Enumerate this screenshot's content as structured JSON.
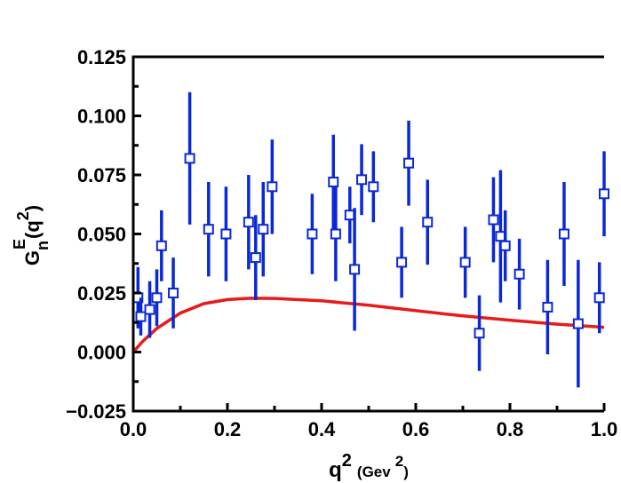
{
  "chart_data": {
    "type": "scatter",
    "xlim": [
      0.0,
      1.0
    ],
    "ylim": [
      -0.025,
      0.125
    ],
    "x_ticks": [
      0.0,
      0.2,
      0.4,
      0.6,
      0.8,
      1.0
    ],
    "x_tick_labels": [
      "0.0",
      "0.2",
      "0.4",
      "0.6",
      "0.8",
      "1.0"
    ],
    "y_ticks": [
      -0.025,
      0.0,
      0.025,
      0.05,
      0.075,
      0.1,
      0.125
    ],
    "y_tick_labels": [
      "−0.025",
      "0.000",
      "0.025",
      "0.050",
      "0.075",
      "0.100",
      "0.125"
    ],
    "xlabel": {
      "base": "q",
      "sup": "2",
      "unit_open": "(Gev",
      "unit_sup": "2",
      "unit_close": ")"
    },
    "ylabel": {
      "base": "G",
      "sub": "n",
      "sup": "E",
      "arg_open": "(q",
      "arg_sup": "2",
      "arg_close": ")"
    },
    "grid": false,
    "colors": {
      "points": "#0a28d8",
      "curve": "#e81a1a",
      "axes": "#000000"
    },
    "series": [
      {
        "kind": "points-with-errorbars",
        "points": [
          {
            "x": 0.01,
            "y": 0.023,
            "err": 0.013
          },
          {
            "x": 0.016,
            "y": 0.015,
            "err": 0.008
          },
          {
            "x": 0.035,
            "y": 0.018,
            "err": 0.012
          },
          {
            "x": 0.05,
            "y": 0.023,
            "err": 0.012
          },
          {
            "x": 0.06,
            "y": 0.045,
            "err": 0.015
          },
          {
            "x": 0.085,
            "y": 0.025,
            "err": 0.015
          },
          {
            "x": 0.12,
            "y": 0.082,
            "err": 0.028
          },
          {
            "x": 0.16,
            "y": 0.052,
            "err": 0.02
          },
          {
            "x": 0.197,
            "y": 0.05,
            "err": 0.02
          },
          {
            "x": 0.245,
            "y": 0.055,
            "err": 0.02
          },
          {
            "x": 0.26,
            "y": 0.04,
            "err": 0.018
          },
          {
            "x": 0.276,
            "y": 0.052,
            "err": 0.02
          },
          {
            "x": 0.295,
            "y": 0.07,
            "err": 0.02
          },
          {
            "x": 0.38,
            "y": 0.05,
            "err": 0.017
          },
          {
            "x": 0.425,
            "y": 0.072,
            "err": 0.02
          },
          {
            "x": 0.43,
            "y": 0.05,
            "err": 0.02
          },
          {
            "x": 0.46,
            "y": 0.058,
            "err": 0.012
          },
          {
            "x": 0.47,
            "y": 0.035,
            "err": 0.026
          },
          {
            "x": 0.485,
            "y": 0.073,
            "err": 0.015
          },
          {
            "x": 0.51,
            "y": 0.07,
            "err": 0.015
          },
          {
            "x": 0.57,
            "y": 0.038,
            "err": 0.015
          },
          {
            "x": 0.585,
            "y": 0.08,
            "err": 0.018
          },
          {
            "x": 0.625,
            "y": 0.055,
            "err": 0.018
          },
          {
            "x": 0.705,
            "y": 0.038,
            "err": 0.015
          },
          {
            "x": 0.735,
            "y": 0.008,
            "err": 0.016
          },
          {
            "x": 0.765,
            "y": 0.056,
            "err": 0.018
          },
          {
            "x": 0.78,
            "y": 0.049,
            "err": 0.028
          },
          {
            "x": 0.79,
            "y": 0.045,
            "err": 0.015
          },
          {
            "x": 0.82,
            "y": 0.033,
            "err": 0.015
          },
          {
            "x": 0.88,
            "y": 0.019,
            "err": 0.02
          },
          {
            "x": 0.915,
            "y": 0.05,
            "err": 0.022
          },
          {
            "x": 0.945,
            "y": 0.012,
            "err": 0.027
          },
          {
            "x": 0.99,
            "y": 0.023,
            "err": 0.015
          },
          {
            "x": 1.0,
            "y": 0.067,
            "err": 0.018
          }
        ]
      },
      {
        "kind": "curve",
        "points": [
          {
            "x": 0.0,
            "y": 0.0
          },
          {
            "x": 0.02,
            "y": 0.0045
          },
          {
            "x": 0.05,
            "y": 0.01
          },
          {
            "x": 0.1,
            "y": 0.0165
          },
          {
            "x": 0.15,
            "y": 0.0205
          },
          {
            "x": 0.2,
            "y": 0.0222
          },
          {
            "x": 0.25,
            "y": 0.0228
          },
          {
            "x": 0.3,
            "y": 0.0227
          },
          {
            "x": 0.4,
            "y": 0.0217
          },
          {
            "x": 0.5,
            "y": 0.0198
          },
          {
            "x": 0.6,
            "y": 0.0175
          },
          {
            "x": 0.7,
            "y": 0.0153
          },
          {
            "x": 0.8,
            "y": 0.0135
          },
          {
            "x": 0.9,
            "y": 0.0118
          },
          {
            "x": 1.0,
            "y": 0.0105
          }
        ]
      }
    ]
  }
}
